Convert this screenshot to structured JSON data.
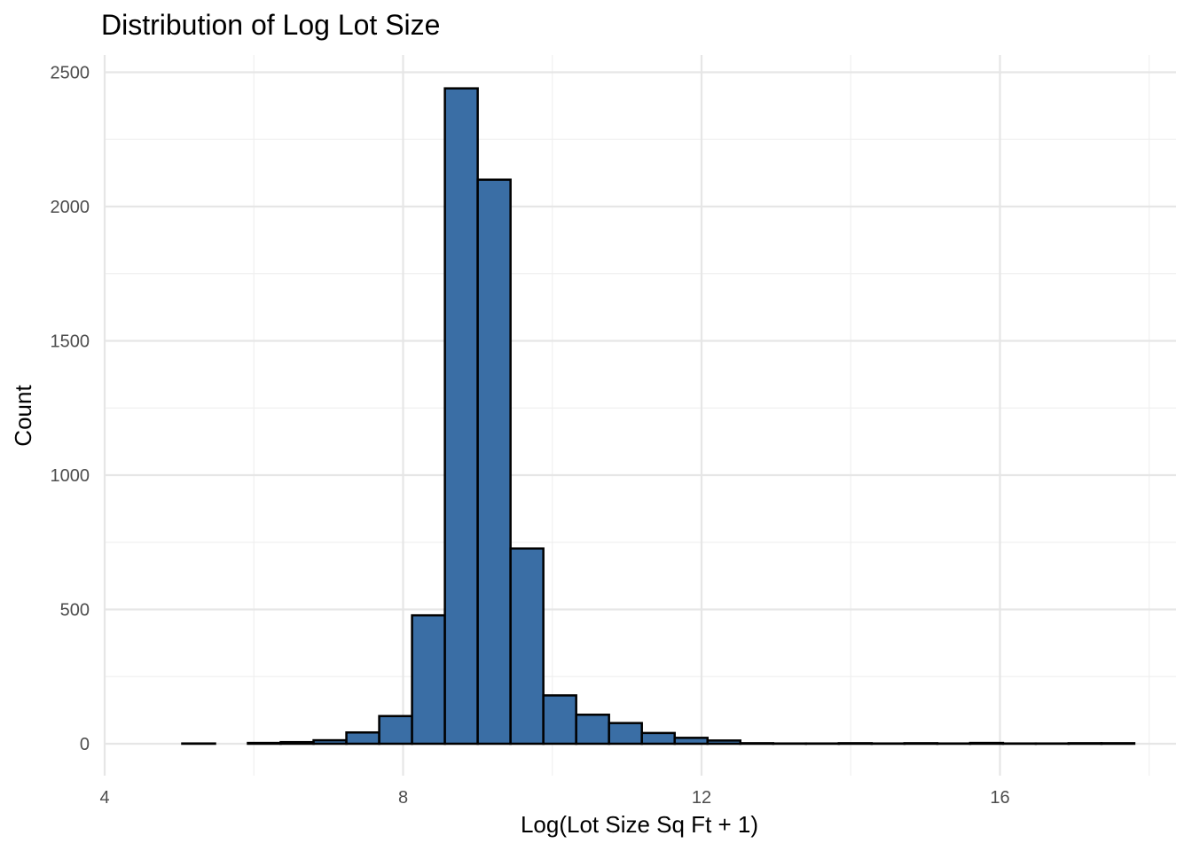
{
  "colors": {
    "bar_fill": "#3a6ea5",
    "bar_stroke": "#000000"
  },
  "chart_data": {
    "type": "bar",
    "title": "Distribution of Log Lot Size",
    "xlabel": "Log(Lot Size Sq Ft + 1)",
    "ylabel": "Count",
    "xlim": [
      4,
      18
    ],
    "ylim": [
      -80,
      2600
    ],
    "x_ticks": [
      4,
      8,
      12,
      16
    ],
    "x_tick_labels": [
      "4",
      "8",
      "12",
      "16"
    ],
    "y_ticks": [
      0,
      500,
      1000,
      1500,
      2000,
      2500
    ],
    "y_tick_labels": [
      "0",
      "500",
      "1000",
      "1500",
      "2000",
      "2500"
    ],
    "grid": true,
    "legend": "none",
    "bin_width": 0.44,
    "bins": [
      {
        "x0": 4.6,
        "x1": 5.04,
        "count": 0
      },
      {
        "x0": 5.04,
        "x1": 5.48,
        "count": 1
      },
      {
        "x0": 5.48,
        "x1": 5.92,
        "count": 0
      },
      {
        "x0": 5.92,
        "x1": 6.36,
        "count": 3
      },
      {
        "x0": 6.36,
        "x1": 6.8,
        "count": 6
      },
      {
        "x0": 6.8,
        "x1": 7.24,
        "count": 13
      },
      {
        "x0": 7.24,
        "x1": 7.68,
        "count": 42
      },
      {
        "x0": 7.68,
        "x1": 8.12,
        "count": 103
      },
      {
        "x0": 8.12,
        "x1": 8.56,
        "count": 478
      },
      {
        "x0": 8.56,
        "x1": 9.0,
        "count": 2440
      },
      {
        "x0": 9.0,
        "x1": 9.44,
        "count": 2100
      },
      {
        "x0": 9.44,
        "x1": 9.88,
        "count": 727
      },
      {
        "x0": 9.88,
        "x1": 10.32,
        "count": 180
      },
      {
        "x0": 10.32,
        "x1": 10.76,
        "count": 108
      },
      {
        "x0": 10.76,
        "x1": 11.2,
        "count": 77
      },
      {
        "x0": 11.2,
        "x1": 11.64,
        "count": 40
      },
      {
        "x0": 11.64,
        "x1": 12.08,
        "count": 22
      },
      {
        "x0": 12.08,
        "x1": 12.52,
        "count": 12
      },
      {
        "x0": 12.52,
        "x1": 12.96,
        "count": 2
      },
      {
        "x0": 12.96,
        "x1": 13.4,
        "count": 1
      },
      {
        "x0": 13.4,
        "x1": 13.84,
        "count": 1
      },
      {
        "x0": 13.84,
        "x1": 14.28,
        "count": 2
      },
      {
        "x0": 14.28,
        "x1": 14.72,
        "count": 1
      },
      {
        "x0": 14.72,
        "x1": 15.16,
        "count": 2
      },
      {
        "x0": 15.16,
        "x1": 15.6,
        "count": 1
      },
      {
        "x0": 15.6,
        "x1": 16.04,
        "count": 3
      },
      {
        "x0": 16.04,
        "x1": 16.48,
        "count": 1
      },
      {
        "x0": 16.48,
        "x1": 16.92,
        "count": 1
      },
      {
        "x0": 16.92,
        "x1": 17.36,
        "count": 2
      },
      {
        "x0": 17.36,
        "x1": 17.8,
        "count": 2
      }
    ]
  }
}
